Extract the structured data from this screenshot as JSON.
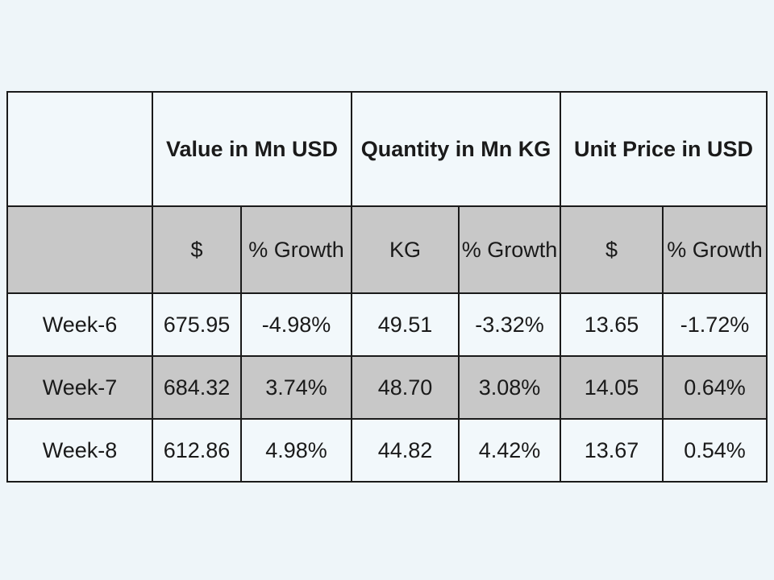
{
  "table": {
    "group_headers": [
      "",
      "Value in Mn USD",
      "Quantity in Mn KG",
      "Unit Price in USD"
    ],
    "sub_headers": [
      "",
      "$",
      "% Growth",
      "KG",
      "% Growth",
      "$",
      "% Growth"
    ],
    "rows": [
      {
        "label": "Week-6",
        "cells": [
          "675.95",
          "-4.98%",
          "49.51",
          "-3.32%",
          "13.65",
          "-1.72%"
        ]
      },
      {
        "label": "Week-7",
        "cells": [
          "684.32",
          "3.74%",
          "48.70",
          "3.08%",
          "14.05",
          "0.64%"
        ]
      },
      {
        "label": "Week-8",
        "cells": [
          "612.86",
          "4.98%",
          "44.82",
          "4.42%",
          "13.67",
          "0.54%"
        ]
      }
    ]
  }
}
